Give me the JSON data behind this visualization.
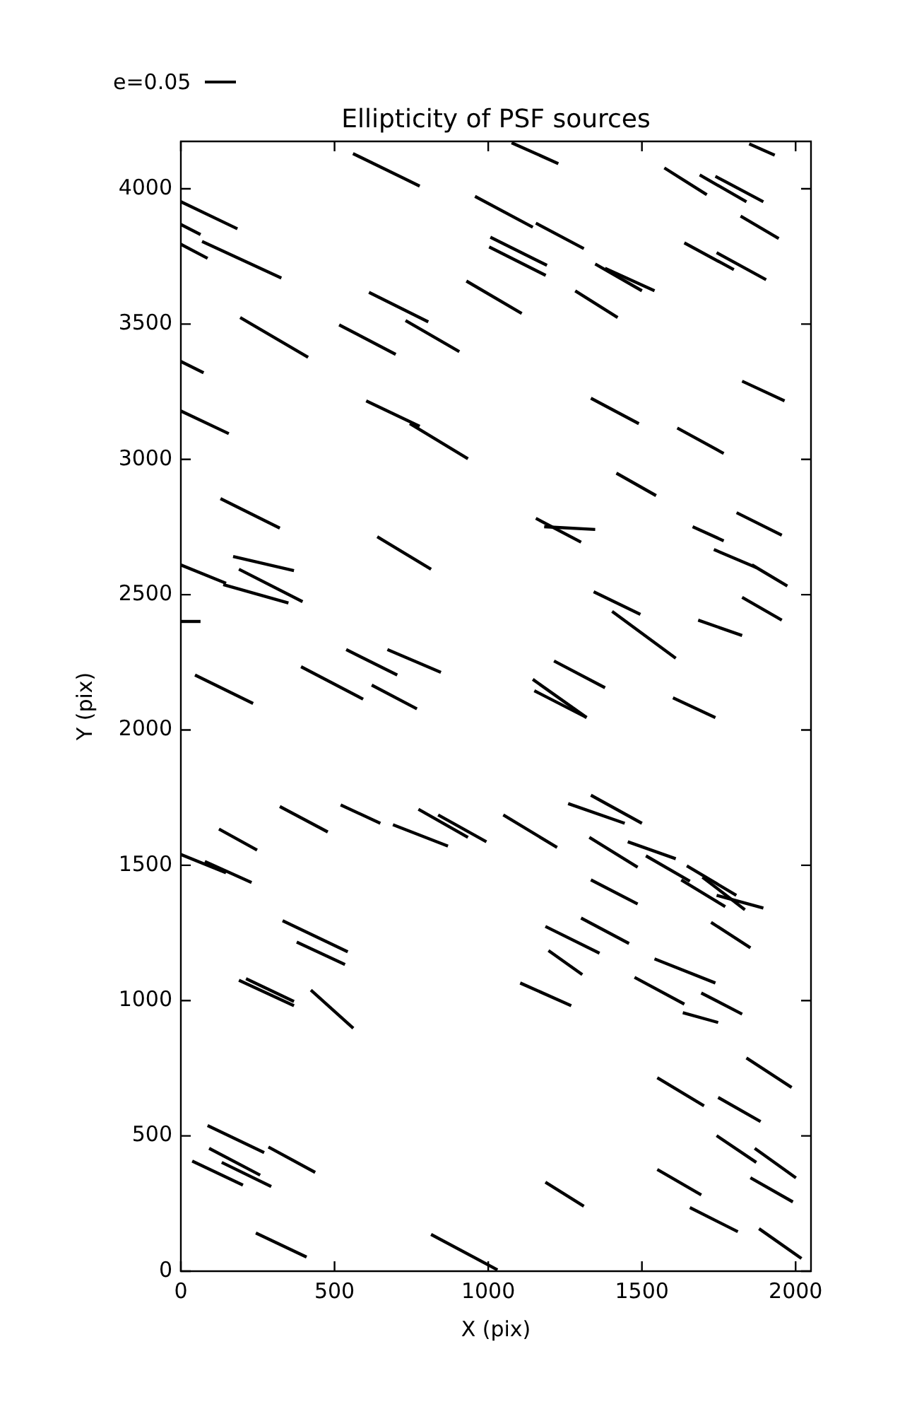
{
  "chart_data": {
    "type": "line",
    "title": "Ellipticity of PSF sources",
    "xlabel": "X (pix)",
    "ylabel": "Y (pix)",
    "xlim": [
      0,
      2050
    ],
    "ylim": [
      0,
      4175
    ],
    "xticks": [
      0,
      500,
      1000,
      1500,
      2000
    ],
    "yticks": [
      0,
      500,
      1000,
      1500,
      2000,
      2500,
      3000,
      3500,
      4000
    ],
    "grid": false,
    "legend": "top left",
    "marker": "none",
    "line_style": "solid",
    "series": [
      {
        "name": "e=0.05",
        "color": "#000000",
        "x": [
          560,
          777
        ],
        "values": [
          4130,
          4010
        ]
      },
      {
        "color": "#000000",
        "x": [
          1076,
          1228
        ],
        "values": [
          4170,
          4093
        ]
      },
      {
        "color": "#000000",
        "x": [
          0,
          184
        ],
        "values": [
          3952,
          3852
        ]
      },
      {
        "color": "#000000",
        "x": [
          0,
          64
        ],
        "values": [
          3868,
          3831
        ]
      },
      {
        "color": "#000000",
        "x": [
          69,
          327
        ],
        "values": [
          3805,
          3670
        ]
      },
      {
        "color": "#000000",
        "x": [
          0,
          87
        ],
        "values": [
          3795,
          3743
        ]
      },
      {
        "color": "#000000",
        "x": [
          957,
          1145
        ],
        "values": [
          3972,
          3858
        ]
      },
      {
        "color": "#000000",
        "x": [
          1155,
          1311
        ],
        "values": [
          3873,
          3779
        ]
      },
      {
        "color": "#000000",
        "x": [
          1007,
          1191
        ],
        "values": [
          3821,
          3717
        ]
      },
      {
        "color": "#000000",
        "x": [
          1003,
          1187
        ],
        "values": [
          3785,
          3680
        ]
      },
      {
        "color": "#000000",
        "x": [
          929,
          1109
        ],
        "values": [
          3659,
          3539
        ]
      },
      {
        "color": "#000000",
        "x": [
          1348,
          1500
        ],
        "values": [
          3722,
          3623
        ]
      },
      {
        "color": "#000000",
        "x": [
          1380,
          1541
        ],
        "values": [
          3706,
          3623
        ]
      },
      {
        "color": "#000000",
        "x": [
          1283,
          1421
        ],
        "values": [
          3623,
          3524
        ]
      },
      {
        "color": "#000000",
        "x": [
          1573,
          1711
        ],
        "values": [
          4077,
          3978
        ]
      },
      {
        "color": "#000000",
        "x": [
          1688,
          1840
        ],
        "values": [
          4051,
          3952
        ]
      },
      {
        "color": "#000000",
        "x": [
          1739,
          1895
        ],
        "values": [
          4046,
          3952
        ]
      },
      {
        "color": "#000000",
        "x": [
          1821,
          1945
        ],
        "values": [
          3899,
          3816
        ]
      },
      {
        "color": "#000000",
        "x": [
          1638,
          1799
        ],
        "values": [
          3800,
          3701
        ]
      },
      {
        "color": "#000000",
        "x": [
          1743,
          1904
        ],
        "values": [
          3764,
          3664
        ]
      },
      {
        "color": "#000000",
        "x": [
          1849,
          1932
        ],
        "values": [
          4166,
          4124
        ]
      },
      {
        "color": "#000000",
        "x": [
          612,
          805
        ],
        "values": [
          3617,
          3508
        ]
      },
      {
        "color": "#000000",
        "x": [
          731,
          906
        ],
        "values": [
          3513,
          3398
        ]
      },
      {
        "color": "#000000",
        "x": [
          515,
          699
        ],
        "values": [
          3497,
          3388
        ]
      },
      {
        "color": "#000000",
        "x": [
          193,
          414
        ],
        "values": [
          3524,
          3377
        ]
      },
      {
        "color": "#000000",
        "x": [
          0,
          74
        ],
        "values": [
          3362,
          3320
        ]
      },
      {
        "color": "#000000",
        "x": [
          0,
          156
        ],
        "values": [
          3179,
          3095
        ]
      },
      {
        "color": "#000000",
        "x": [
          603,
          777
        ],
        "values": [
          3216,
          3122
        ]
      },
      {
        "color": "#000000",
        "x": [
          745,
          934
        ],
        "values": [
          3132,
          3002
        ]
      },
      {
        "color": "#000000",
        "x": [
          1334,
          1490
        ],
        "values": [
          3226,
          3132
        ]
      },
      {
        "color": "#000000",
        "x": [
          1615,
          1766
        ],
        "values": [
          3116,
          3022
        ]
      },
      {
        "color": "#000000",
        "x": [
          1826,
          1964
        ],
        "values": [
          3289,
          3216
        ]
      },
      {
        "color": "#000000",
        "x": [
          1417,
          1546
        ],
        "values": [
          2949,
          2866
        ]
      },
      {
        "color": "#000000",
        "x": [
          129,
          322
        ],
        "values": [
          2855,
          2746
        ]
      },
      {
        "color": "#000000",
        "x": [
          1155,
          1302
        ],
        "values": [
          2782,
          2694
        ]
      },
      {
        "color": "#000000",
        "x": [
          1808,
          1955
        ],
        "values": [
          2803,
          2720
        ]
      },
      {
        "color": "#000000",
        "x": [
          1182,
          1348
        ],
        "values": [
          2751,
          2741
        ]
      },
      {
        "color": "#000000",
        "x": [
          639,
          814
        ],
        "values": [
          2714,
          2594
        ]
      },
      {
        "color": "#000000",
        "x": [
          1665,
          1766
        ],
        "values": [
          2751,
          2699
        ]
      },
      {
        "color": "#000000",
        "x": [
          1734,
          1872
        ],
        "values": [
          2667,
          2600
        ]
      },
      {
        "color": "#000000",
        "x": [
          1858,
          1973
        ],
        "values": [
          2610,
          2532
        ]
      },
      {
        "color": "#000000",
        "x": [
          0,
          147
        ],
        "values": [
          2610,
          2542
        ]
      },
      {
        "color": "#000000",
        "x": [
          138,
          350
        ],
        "values": [
          2537,
          2469
        ]
      },
      {
        "color": "#000000",
        "x": [
          170,
          368
        ],
        "values": [
          2641,
          2589
        ]
      },
      {
        "color": "#000000",
        "x": [
          189,
          396
        ],
        "values": [
          2594,
          2474
        ]
      },
      {
        "color": "#000000",
        "x": [
          0,
          64
        ],
        "values": [
          2401,
          2401
        ]
      },
      {
        "color": "#000000",
        "x": [
          1343,
          1495
        ],
        "values": [
          2511,
          2427
        ]
      },
      {
        "color": "#000000",
        "x": [
          1403,
          1610
        ],
        "values": [
          2438,
          2265
        ]
      },
      {
        "color": "#000000",
        "x": [
          1683,
          1826
        ],
        "values": [
          2406,
          2349
        ]
      },
      {
        "color": "#000000",
        "x": [
          1826,
          1955
        ],
        "values": [
          2490,
          2406
        ]
      },
      {
        "color": "#000000",
        "x": [
          46,
          235
        ],
        "values": [
          2203,
          2098
        ]
      },
      {
        "color": "#000000",
        "x": [
          391,
          593
        ],
        "values": [
          2234,
          2114
        ]
      },
      {
        "color": "#000000",
        "x": [
          538,
          704
        ],
        "values": [
          2297,
          2203
        ]
      },
      {
        "color": "#000000",
        "x": [
          672,
          846
        ],
        "values": [
          2297,
          2213
        ]
      },
      {
        "color": "#000000",
        "x": [
          621,
          768
        ],
        "values": [
          2166,
          2078
        ]
      },
      {
        "color": "#000000",
        "x": [
          1214,
          1380
        ],
        "values": [
          2255,
          2156
        ]
      },
      {
        "color": "#000000",
        "x": [
          1145,
          1320
        ],
        "values": [
          2187,
          2046
        ]
      },
      {
        "color": "#000000",
        "x": [
          1150,
          1320
        ],
        "values": [
          2145,
          2046
        ]
      },
      {
        "color": "#000000",
        "x": [
          1601,
          1739
        ],
        "values": [
          2119,
          2046
        ]
      },
      {
        "color": "#000000",
        "x": [
          124,
          248
        ],
        "values": [
          1634,
          1556
        ]
      },
      {
        "color": "#000000",
        "x": [
          322,
          478
        ],
        "values": [
          1717,
          1623
        ]
      },
      {
        "color": "#000000",
        "x": [
          520,
          649
        ],
        "values": [
          1723,
          1655
        ]
      },
      {
        "color": "#000000",
        "x": [
          690,
          869
        ],
        "values": [
          1650,
          1571
        ]
      },
      {
        "color": "#000000",
        "x": [
          773,
          934
        ],
        "values": [
          1707,
          1603
        ]
      },
      {
        "color": "#000000",
        "x": [
          837,
          994
        ],
        "values": [
          1686,
          1587
        ]
      },
      {
        "color": "#000000",
        "x": [
          1049,
          1224
        ],
        "values": [
          1686,
          1566
        ]
      },
      {
        "color": "#000000",
        "x": [
          1260,
          1444
        ],
        "values": [
          1728,
          1655
        ]
      },
      {
        "color": "#000000",
        "x": [
          1334,
          1500
        ],
        "values": [
          1759,
          1655
        ]
      },
      {
        "color": "#000000",
        "x": [
          1329,
          1486
        ],
        "values": [
          1603,
          1493
        ]
      },
      {
        "color": "#000000",
        "x": [
          1454,
          1610
        ],
        "values": [
          1587,
          1524
        ]
      },
      {
        "color": "#000000",
        "x": [
          1513,
          1656
        ],
        "values": [
          1535,
          1441
        ]
      },
      {
        "color": "#000000",
        "x": [
          1646,
          1807
        ],
        "values": [
          1498,
          1389
        ]
      },
      {
        "color": "#000000",
        "x": [
          0,
          147
        ],
        "values": [
          1540,
          1472
        ]
      },
      {
        "color": "#000000",
        "x": [
          78,
          230
        ],
        "values": [
          1514,
          1436
        ]
      },
      {
        "color": "#000000",
        "x": [
          1334,
          1486
        ],
        "values": [
          1446,
          1357
        ]
      },
      {
        "color": "#000000",
        "x": [
          1628,
          1771
        ],
        "values": [
          1446,
          1347
        ]
      },
      {
        "color": "#000000",
        "x": [
          1697,
          1835
        ],
        "values": [
          1456,
          1336
        ]
      },
      {
        "color": "#000000",
        "x": [
          1743,
          1895
        ],
        "values": [
          1389,
          1342
        ]
      },
      {
        "color": "#000000",
        "x": [
          331,
          543
        ],
        "values": [
          1295,
          1180
        ]
      },
      {
        "color": "#000000",
        "x": [
          377,
          534
        ],
        "values": [
          1216,
          1133
        ]
      },
      {
        "color": "#000000",
        "x": [
          189,
          368
        ],
        "values": [
          1075,
          981
        ]
      },
      {
        "color": "#000000",
        "x": [
          212,
          368
        ],
        "values": [
          1081,
          997
        ]
      },
      {
        "color": "#000000",
        "x": [
          423,
          561
        ],
        "values": [
          1039,
          898
        ]
      },
      {
        "color": "#000000",
        "x": [
          1186,
          1362
        ],
        "values": [
          1274,
          1175
        ]
      },
      {
        "color": "#000000",
        "x": [
          1302,
          1458
        ],
        "values": [
          1305,
          1211
        ]
      },
      {
        "color": "#000000",
        "x": [
          1196,
          1306
        ],
        "values": [
          1185,
          1096
        ]
      },
      {
        "color": "#000000",
        "x": [
          1104,
          1270
        ],
        "values": [
          1065,
          981
        ]
      },
      {
        "color": "#000000",
        "x": [
          1541,
          1739
        ],
        "values": [
          1154,
          1065
        ]
      },
      {
        "color": "#000000",
        "x": [
          1476,
          1638
        ],
        "values": [
          1086,
          987
        ]
      },
      {
        "color": "#000000",
        "x": [
          1693,
          1826
        ],
        "values": [
          1028,
          950
        ]
      },
      {
        "color": "#000000",
        "x": [
          1633,
          1748
        ],
        "values": [
          955,
          919
        ]
      },
      {
        "color": "#000000",
        "x": [
          1725,
          1853
        ],
        "values": [
          1289,
          1195
        ]
      },
      {
        "color": "#000000",
        "x": [
          1840,
          1987
        ],
        "values": [
          788,
          679
        ]
      },
      {
        "color": "#000000",
        "x": [
          1550,
          1702
        ],
        "values": [
          715,
          611
        ]
      },
      {
        "color": "#000000",
        "x": [
          1748,
          1886
        ],
        "values": [
          642,
          553
        ]
      },
      {
        "color": "#000000",
        "x": [
          1743,
          1872
        ],
        "values": [
          501,
          402
        ]
      },
      {
        "color": "#000000",
        "x": [
          1867,
          2001
        ],
        "values": [
          454,
          345
        ]
      },
      {
        "color": "#000000",
        "x": [
          1550,
          1693
        ],
        "values": [
          376,
          282
        ]
      },
      {
        "color": "#000000",
        "x": [
          1853,
          1991
        ],
        "values": [
          345,
          256
        ]
      },
      {
        "color": "#000000",
        "x": [
          1656,
          1812
        ],
        "values": [
          235,
          146
        ]
      },
      {
        "color": "#000000",
        "x": [
          1881,
          2019
        ],
        "values": [
          157,
          47
        ]
      },
      {
        "color": "#000000",
        "x": [
          1186,
          1311
        ],
        "values": [
          329,
          240
        ]
      },
      {
        "color": "#000000",
        "x": [
          814,
          1030
        ],
        "values": [
          136,
          5
        ]
      },
      {
        "color": "#000000",
        "x": [
          244,
          409
        ],
        "values": [
          141,
          52
        ]
      },
      {
        "color": "#000000",
        "x": [
          87,
          271
        ],
        "values": [
          538,
          438
        ]
      },
      {
        "color": "#000000",
        "x": [
          285,
          437
        ],
        "values": [
          459,
          365
        ]
      },
      {
        "color": "#000000",
        "x": [
          92,
          258
        ],
        "values": [
          454,
          355
        ]
      },
      {
        "color": "#000000",
        "x": [
          133,
          294
        ],
        "values": [
          402,
          313
        ]
      },
      {
        "color": "#000000",
        "x": [
          37,
          202
        ],
        "values": [
          407,
          318
        ]
      }
    ]
  }
}
